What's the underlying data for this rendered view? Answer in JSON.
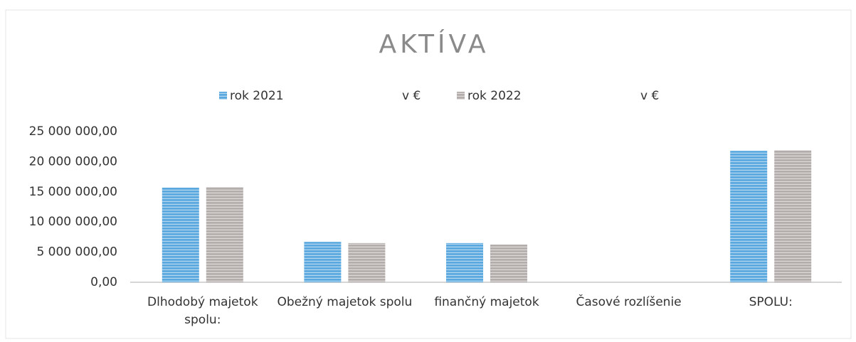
{
  "chart_data": {
    "type": "bar",
    "title": "AKTÍVA",
    "categories": [
      "Dlhodobý majetok spolu:",
      "Obežný majetok spolu",
      "finančný majetok",
      "Časové rozlíšenie",
      "SPOLU:"
    ],
    "series": [
      {
        "name": "rok 2021",
        "unit": "v €",
        "color": "#5aa8de",
        "values": [
          15700000,
          6700000,
          6500000,
          0,
          21800000
        ]
      },
      {
        "name": "rok 2022",
        "unit": "v €",
        "color": "#b3adab",
        "values": [
          15800000,
          6500000,
          6250000,
          0,
          21900000
        ]
      }
    ],
    "ylim": [
      0,
      25000000
    ],
    "yticks": [
      {
        "value": 0,
        "label": "0,00"
      },
      {
        "value": 5000000,
        "label": "5 000 000,00"
      },
      {
        "value": 10000000,
        "label": "10 000 000,00"
      },
      {
        "value": 15000000,
        "label": "15 000 000,00"
      },
      {
        "value": 20000000,
        "label": "20 000 000,00"
      },
      {
        "value": 25000000,
        "label": "25 000 000,00"
      }
    ],
    "grid": false
  }
}
